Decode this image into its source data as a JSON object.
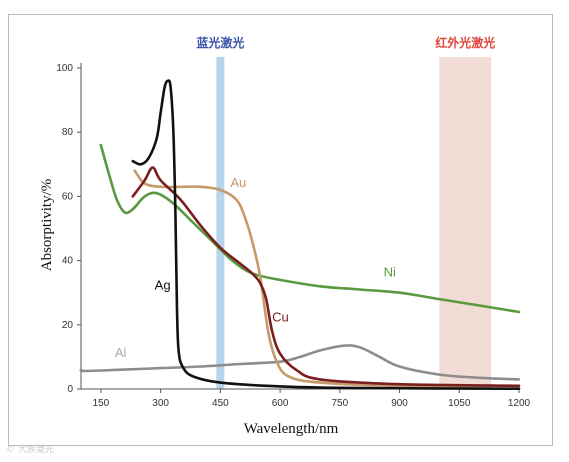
{
  "chart_data": {
    "type": "line",
    "title": "",
    "xlabel": "Wavelength/nm",
    "ylabel": "Absorptivity/%",
    "xlim": [
      100,
      1200
    ],
    "ylim": [
      0,
      100
    ],
    "xticks": [
      150,
      300,
      450,
      600,
      750,
      900,
      1050,
      1200
    ],
    "yticks": [
      0,
      20,
      40,
      60,
      80,
      100
    ],
    "grid": false,
    "legend": "inline labels",
    "bands": [
      {
        "label": "蓝光激光",
        "x": [
          440,
          460
        ],
        "color": "#a9cde8",
        "label_color": "#3a55a8"
      },
      {
        "label": "红外光激光",
        "x": [
          1000,
          1130
        ],
        "color": "#efd6cf",
        "label_color": "#e0443a"
      }
    ],
    "series": [
      {
        "name": "Ag",
        "color": "#111111",
        "points": [
          [
            230,
            71
          ],
          [
            250,
            70
          ],
          [
            270,
            72
          ],
          [
            290,
            78
          ],
          [
            300,
            86
          ],
          [
            310,
            94
          ],
          [
            318,
            96
          ],
          [
            325,
            94
          ],
          [
            332,
            80
          ],
          [
            337,
            55
          ],
          [
            341,
            25
          ],
          [
            345,
            12
          ],
          [
            355,
            7
          ],
          [
            380,
            4
          ],
          [
            450,
            2
          ],
          [
            600,
            0.8
          ],
          [
            800,
            0.3
          ],
          [
            1200,
            0.1
          ]
        ]
      },
      {
        "name": "Au",
        "color": "#c79a6b",
        "points": [
          [
            235,
            68
          ],
          [
            260,
            64
          ],
          [
            300,
            63
          ],
          [
            350,
            63
          ],
          [
            400,
            63
          ],
          [
            450,
            62
          ],
          [
            490,
            59
          ],
          [
            510,
            54
          ],
          [
            530,
            46
          ],
          [
            550,
            35
          ],
          [
            570,
            18
          ],
          [
            590,
            9
          ],
          [
            620,
            4
          ],
          [
            700,
            2
          ],
          [
            900,
            1
          ],
          [
            1200,
            1
          ]
        ]
      },
      {
        "name": "Cu",
        "color": "#7a1e1e",
        "points": [
          [
            230,
            60
          ],
          [
            260,
            65
          ],
          [
            280,
            69
          ],
          [
            300,
            65
          ],
          [
            350,
            59
          ],
          [
            400,
            51
          ],
          [
            450,
            44
          ],
          [
            500,
            39
          ],
          [
            530,
            36
          ],
          [
            550,
            33
          ],
          [
            565,
            28
          ],
          [
            580,
            18
          ],
          [
            600,
            11
          ],
          [
            640,
            6
          ],
          [
            700,
            3
          ],
          [
            900,
            1.5
          ],
          [
            1200,
            1
          ]
        ]
      },
      {
        "name": "Ni",
        "color": "#5a9a3e",
        "points": [
          [
            150,
            76
          ],
          [
            170,
            67
          ],
          [
            190,
            59
          ],
          [
            210,
            55
          ],
          [
            230,
            56
          ],
          [
            260,
            60
          ],
          [
            290,
            61
          ],
          [
            330,
            58
          ],
          [
            380,
            52
          ],
          [
            430,
            46
          ],
          [
            480,
            40
          ],
          [
            530,
            36
          ],
          [
            600,
            34
          ],
          [
            700,
            32
          ],
          [
            800,
            31
          ],
          [
            900,
            30
          ],
          [
            1000,
            28
          ],
          [
            1100,
            26
          ],
          [
            1200,
            24
          ]
        ]
      },
      {
        "name": "Al",
        "color": "#8d8d8d",
        "points": [
          [
            100,
            6
          ],
          [
            110,
            5.6
          ],
          [
            200,
            6
          ],
          [
            300,
            6.5
          ],
          [
            400,
            7
          ],
          [
            500,
            7.8
          ],
          [
            600,
            8.5
          ],
          [
            650,
            10
          ],
          [
            700,
            12
          ],
          [
            760,
            13.5
          ],
          [
            800,
            13
          ],
          [
            850,
            10
          ],
          [
            900,
            7
          ],
          [
            1000,
            4.5
          ],
          [
            1100,
            3.5
          ],
          [
            1200,
            3
          ]
        ]
      }
    ],
    "annotations": [
      {
        "text": "Ag",
        "x": 285,
        "y": 31,
        "color": "#111111"
      },
      {
        "text": "Au",
        "x": 475,
        "y": 63,
        "color": "#c79a6b"
      },
      {
        "text": "Cu",
        "x": 580,
        "y": 21,
        "color": "#7a1e1e"
      },
      {
        "text": "Ni",
        "x": 860,
        "y": 35,
        "color": "#5a9a3e"
      },
      {
        "text": "Al",
        "x": 185,
        "y": 10,
        "color": "#a8a8a8"
      }
    ]
  },
  "watermark": "© 大族激光"
}
